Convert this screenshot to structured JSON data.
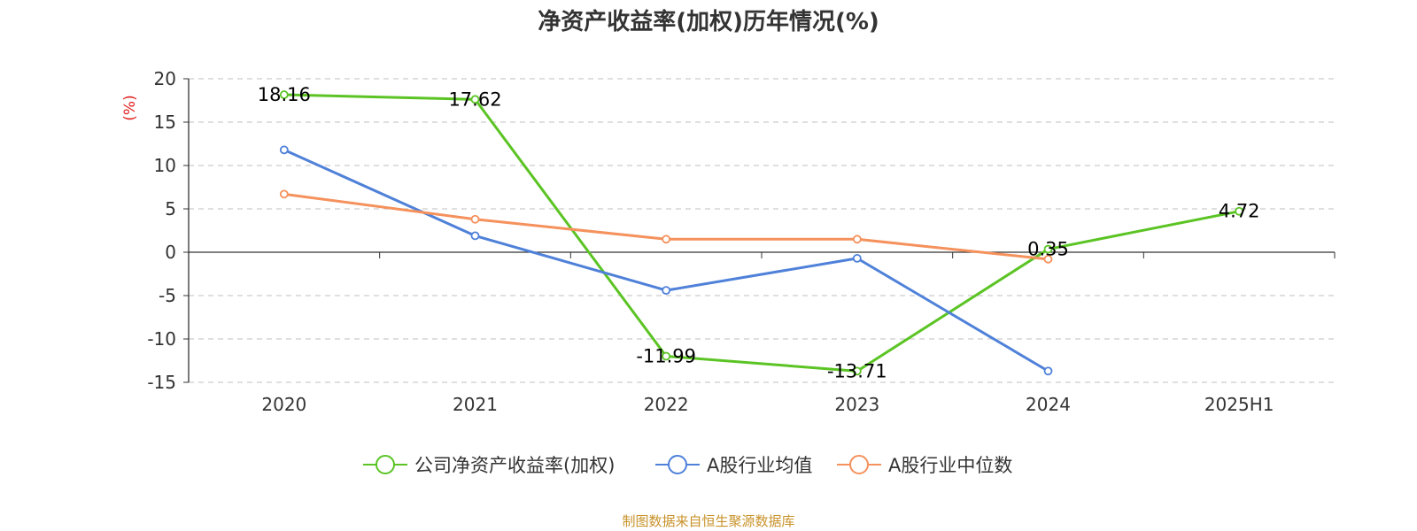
{
  "chart_data": {
    "type": "line",
    "title": "净资产收益率(加权)历年情况(%)",
    "ylabel": "(%)",
    "xlabel": "",
    "categories": [
      "2020",
      "2021",
      "2022",
      "2023",
      "2024",
      "2025H1"
    ],
    "ylim": [
      -15,
      20
    ],
    "yticks": [
      20,
      15,
      10,
      5,
      0,
      -5,
      -10,
      -15
    ],
    "grid": true,
    "legend_position": "bottom",
    "series": [
      {
        "name": "公司净资产收益率(加权)",
        "color": "#5bc424",
        "values": [
          18.16,
          17.62,
          -11.99,
          -13.71,
          0.35,
          4.72
        ],
        "labels": [
          "18.16",
          "17.62",
          "-11.99",
          "-13.71",
          "0.35",
          "4.72"
        ]
      },
      {
        "name": "A股行业均值",
        "color": "#4f81d9",
        "values": [
          11.8,
          1.9,
          -4.4,
          -0.7,
          -13.7,
          null
        ]
      },
      {
        "name": "A股行业中位数",
        "color": "#f5915c",
        "values": [
          6.7,
          3.8,
          1.5,
          1.5,
          -0.8,
          null
        ]
      }
    ]
  },
  "source": "制图数据来自恒生聚源数据库"
}
